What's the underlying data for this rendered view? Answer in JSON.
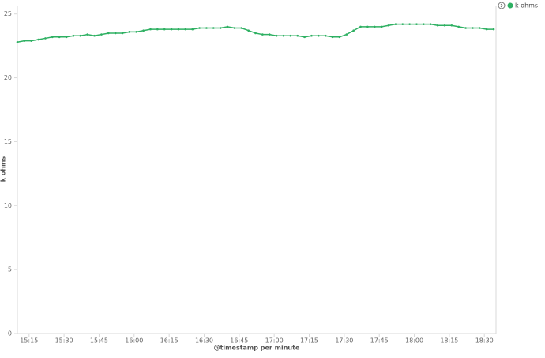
{
  "chart_data": {
    "type": "line",
    "x_label": "@timestamp per minute",
    "y_label": "k ohms",
    "x": [
      "15:10",
      "15:13",
      "15:16",
      "15:19",
      "15:22",
      "15:25",
      "15:28",
      "15:31",
      "15:34",
      "15:37",
      "15:40",
      "15:43",
      "15:46",
      "15:49",
      "15:52",
      "15:55",
      "15:58",
      "16:01",
      "16:04",
      "16:07",
      "16:10",
      "16:13",
      "16:16",
      "16:19",
      "16:22",
      "16:25",
      "16:28",
      "16:31",
      "16:34",
      "16:37",
      "16:40",
      "16:43",
      "16:46",
      "16:49",
      "16:52",
      "16:55",
      "16:58",
      "17:01",
      "17:04",
      "17:07",
      "17:10",
      "17:13",
      "17:16",
      "17:19",
      "17:22",
      "17:25",
      "17:28",
      "17:31",
      "17:34",
      "17:37",
      "17:40",
      "17:43",
      "17:46",
      "17:49",
      "17:52",
      "17:55",
      "17:58",
      "18:01",
      "18:04",
      "18:07",
      "18:10",
      "18:13",
      "18:16",
      "18:19",
      "18:22",
      "18:25",
      "18:28",
      "18:31",
      "18:34"
    ],
    "series": [
      {
        "name": "k ohms",
        "color": "#2eb062",
        "values": [
          22.8,
          22.9,
          22.9,
          23.0,
          23.1,
          23.2,
          23.2,
          23.2,
          23.3,
          23.3,
          23.4,
          23.3,
          23.4,
          23.5,
          23.5,
          23.5,
          23.6,
          23.6,
          23.7,
          23.8,
          23.8,
          23.8,
          23.8,
          23.8,
          23.8,
          23.8,
          23.9,
          23.9,
          23.9,
          23.9,
          24.0,
          23.9,
          23.9,
          23.7,
          23.5,
          23.4,
          23.4,
          23.3,
          23.3,
          23.3,
          23.3,
          23.2,
          23.3,
          23.3,
          23.3,
          23.2,
          23.2,
          23.4,
          23.7,
          24.0,
          24.0,
          24.0,
          24.0,
          24.1,
          24.2,
          24.2,
          24.2,
          24.2,
          24.2,
          24.2,
          24.1,
          24.1,
          24.1,
          24.0,
          23.9,
          23.9,
          23.9,
          23.8,
          23.8
        ]
      }
    ],
    "xlim": [
      "15:10",
      "18:35"
    ],
    "xticks": [
      "15:15",
      "15:30",
      "15:45",
      "16:00",
      "16:15",
      "16:30",
      "16:45",
      "17:00",
      "17:15",
      "17:30",
      "17:45",
      "18:00",
      "18:15",
      "18:30"
    ],
    "ylim": [
      0,
      25.6
    ],
    "yticks": [
      0,
      5,
      10,
      15,
      20,
      25
    ],
    "legend": "top-right"
  }
}
